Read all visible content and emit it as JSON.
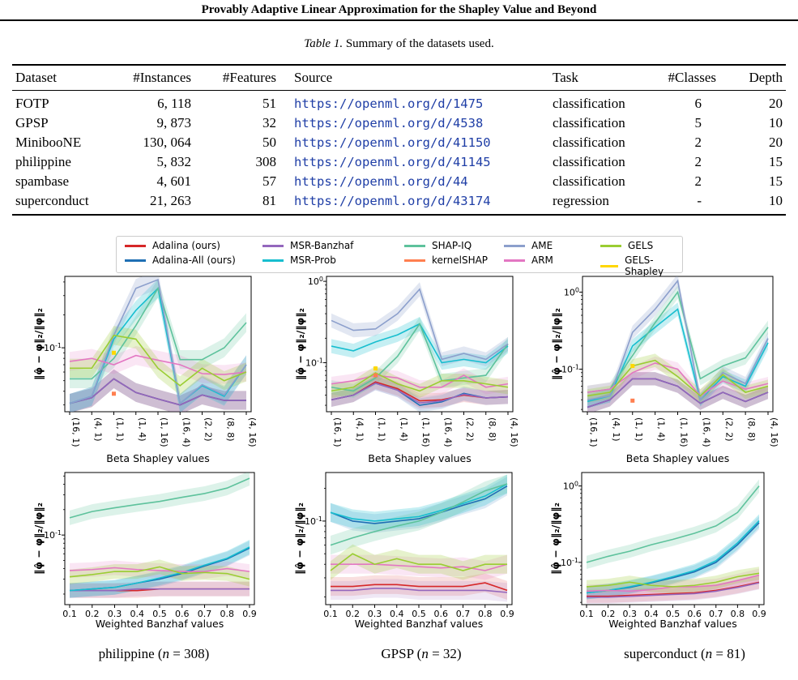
{
  "paper_header": "Provably Adaptive Linear Approximation for the Shapley Value and Beyond",
  "table": {
    "caption_prefix": "Table 1.",
    "caption_text": "Summary of the datasets used.",
    "columns": [
      "Dataset",
      "#Instances",
      "#Features",
      "Source",
      "Task",
      "#Classes",
      "Depth"
    ],
    "rows": [
      {
        "dataset": "FOTP",
        "instances": "6, 118",
        "features": "51",
        "source": "https://openml.org/d/1475",
        "task": "classification",
        "classes": "6",
        "depth": "20"
      },
      {
        "dataset": "GPSP",
        "instances": "9, 873",
        "features": "32",
        "source": "https://openml.org/d/4538",
        "task": "classification",
        "classes": "5",
        "depth": "10"
      },
      {
        "dataset": "MinibooNE",
        "instances": "130, 064",
        "features": "50",
        "source": "https://openml.org/d/41150",
        "task": "classification",
        "classes": "2",
        "depth": "20"
      },
      {
        "dataset": "philippine",
        "instances": "5, 832",
        "features": "308",
        "source": "https://openml.org/d/41145",
        "task": "classification",
        "classes": "2",
        "depth": "15"
      },
      {
        "dataset": "spambase",
        "instances": "4, 601",
        "features": "57",
        "source": "https://openml.org/d/44",
        "task": "classification",
        "classes": "2",
        "depth": "15"
      },
      {
        "dataset": "superconduct",
        "instances": "21, 263",
        "features": "81",
        "source": "https://openml.org/d/43174",
        "task": "regression",
        "classes": "-",
        "depth": "10"
      }
    ]
  },
  "legend": [
    {
      "name": "Adalina (ours)",
      "color": "#d62728"
    },
    {
      "name": "Adalina-All (ours)",
      "color": "#1f6fb4"
    },
    {
      "name": "MSR-Banzhaf",
      "color": "#9467bd"
    },
    {
      "name": "MSR-Prob",
      "color": "#17becf"
    },
    {
      "name": "SHAP-IQ",
      "color": "#5ec29c"
    },
    {
      "name": "kernelSHAP",
      "color": "#ff7f50"
    },
    {
      "name": "AME",
      "color": "#8c9fcc"
    },
    {
      "name": "ARM",
      "color": "#e377c2"
    },
    {
      "name": "GELS",
      "color": "#9acd32"
    },
    {
      "name": "GELS-Shapley",
      "color": "#ffd700"
    }
  ],
  "ylabel": "‖φ̂ − φ‖₂/‖φ‖₂",
  "beta_xlabel": "Beta Shapley values",
  "banzhaf_xlabel": "Weighted Banzhaf values",
  "beta_ticks": [
    "(16, 1)",
    "(4, 1)",
    "(1, 1)",
    "(1, 4)",
    "(1, 16)",
    "(16, 4)",
    "(2, 2)",
    "(8, 8)",
    "(4, 16)"
  ],
  "banzhaf_ticks": [
    "0.1",
    "0.2",
    "0.3",
    "0.4",
    "0.5",
    "0.6",
    "0.7",
    "0.8",
    "0.9"
  ],
  "subfigure_labels": [
    {
      "name": "philippine",
      "n": "308"
    },
    {
      "name": "GPSP",
      "n": "32"
    },
    {
      "name": "superconduct",
      "n": "81"
    }
  ],
  "chart_data": [
    {
      "panel": "philippine-beta",
      "type": "line",
      "log_y": true,
      "x": [
        "(16, 1)",
        "(4, 1)",
        "(1, 1)",
        "(1, 4)",
        "(1, 16)",
        "(16, 4)",
        "(2, 2)",
        "(8, 8)",
        "(4, 16)"
      ],
      "ylim": [
        0.026,
        0.45
      ],
      "ytick_labels": [
        {
          "value": 0.1,
          "label": "10^-1"
        }
      ],
      "xlabel": "Beta Shapley values",
      "series": [
        {
          "name": "Adalina (ours)",
          "values": [
            0.031,
            0.035,
            0.052,
            0.039,
            0.034,
            0.03,
            0.037,
            0.033,
            0.033
          ]
        },
        {
          "name": "Adalina-All (ours)",
          "values": [
            0.031,
            0.035,
            0.052,
            0.039,
            0.034,
            0.03,
            0.037,
            0.033,
            0.033
          ]
        },
        {
          "name": "MSR-Banzhaf",
          "values": [
            0.031,
            0.035,
            0.052,
            0.039,
            0.034,
            0.03,
            0.037,
            0.033,
            0.033
          ]
        },
        {
          "name": "MSR-Prob",
          "values": [
            0.031,
            0.036,
            0.12,
            0.22,
            0.35,
            0.031,
            0.045,
            0.036,
            0.07
          ]
        },
        {
          "name": "SHAP-IQ",
          "values": [
            0.052,
            0.052,
            0.08,
            0.16,
            0.35,
            0.078,
            0.078,
            0.1,
            0.17
          ]
        },
        {
          "name": "AME",
          "values": [
            0.031,
            0.036,
            0.13,
            0.35,
            0.42,
            0.031,
            0.046,
            0.037,
            0.07
          ]
        },
        {
          "name": "ARM",
          "values": [
            0.075,
            0.08,
            0.07,
            0.085,
            0.077,
            0.07,
            0.058,
            0.057,
            0.06
          ]
        },
        {
          "name": "GELS",
          "values": [
            0.065,
            0.065,
            0.13,
            0.12,
            0.065,
            0.045,
            0.065,
            0.05,
            0.06
          ]
        },
        {
          "name": "GELS-Shapley",
          "x": [
            "(1, 1)"
          ],
          "values": [
            0.09
          ]
        },
        {
          "name": "kernelSHAP",
          "x": [
            "(1, 1)"
          ],
          "values": [
            0.038
          ]
        }
      ]
    },
    {
      "panel": "GPSP-beta",
      "type": "line",
      "log_y": true,
      "x": [
        "(16, 1)",
        "(4, 1)",
        "(1, 1)",
        "(1, 4)",
        "(1, 16)",
        "(16, 4)",
        "(2, 2)",
        "(8, 8)",
        "(4, 16)"
      ],
      "ylim": [
        0.025,
        1.15
      ],
      "ytick_labels": [
        {
          "value": 1,
          "label": "10^0"
        },
        {
          "value": 0.1,
          "label": "10^-1"
        }
      ],
      "xlabel": "Beta Shapley values",
      "series": [
        {
          "name": "Adalina (ours)",
          "values": [
            0.035,
            0.04,
            0.058,
            0.048,
            0.034,
            0.035,
            0.04,
            0.037,
            0.038
          ]
        },
        {
          "name": "Adalina-All (ours)",
          "values": [
            0.035,
            0.04,
            0.056,
            0.046,
            0.03,
            0.033,
            0.042,
            0.037,
            0.038
          ]
        },
        {
          "name": "MSR-Banzhaf",
          "values": [
            0.035,
            0.04,
            0.056,
            0.046,
            0.032,
            0.034,
            0.041,
            0.037,
            0.038
          ]
        },
        {
          "name": "MSR-Prob",
          "values": [
            0.16,
            0.14,
            0.18,
            0.22,
            0.3,
            0.1,
            0.11,
            0.1,
            0.16
          ]
        },
        {
          "name": "SHAP-IQ",
          "values": [
            0.05,
            0.045,
            0.065,
            0.12,
            0.3,
            0.06,
            0.065,
            0.07,
            0.17
          ]
        },
        {
          "name": "AME",
          "values": [
            0.33,
            0.25,
            0.26,
            0.4,
            0.8,
            0.11,
            0.13,
            0.11,
            0.17
          ]
        },
        {
          "name": "ARM",
          "values": [
            0.055,
            0.06,
            0.07,
            0.065,
            0.05,
            0.05,
            0.07,
            0.05,
            0.055
          ]
        },
        {
          "name": "GELS",
          "values": [
            0.045,
            0.05,
            0.075,
            0.055,
            0.045,
            0.06,
            0.06,
            0.055,
            0.05
          ]
        },
        {
          "name": "GELS-Shapley",
          "x": [
            "(1, 1)"
          ],
          "values": [
            0.085
          ]
        },
        {
          "name": "kernelSHAP",
          "x": [
            "(1, 1)"
          ],
          "values": [
            0.07
          ]
        }
      ]
    },
    {
      "panel": "superconduct-beta",
      "type": "line",
      "log_y": true,
      "x": [
        "(16, 1)",
        "(4, 1)",
        "(1, 1)",
        "(1, 4)",
        "(1, 16)",
        "(16, 4)",
        "(2, 2)",
        "(8, 8)",
        "(4, 16)"
      ],
      "ylim": [
        0.028,
        1.6
      ],
      "ytick_labels": [
        {
          "value": 1,
          "label": "10^0"
        },
        {
          "value": 0.1,
          "label": "10^-1"
        }
      ],
      "xlabel": "Beta Shapley values",
      "series": [
        {
          "name": "Adalina (ours)",
          "values": [
            0.032,
            0.04,
            0.075,
            0.075,
            0.06,
            0.036,
            0.05,
            0.038,
            0.05
          ]
        },
        {
          "name": "Adalina-All (ours)",
          "values": [
            0.032,
            0.04,
            0.075,
            0.075,
            0.06,
            0.036,
            0.05,
            0.038,
            0.05
          ]
        },
        {
          "name": "MSR-Banzhaf",
          "values": [
            0.032,
            0.04,
            0.075,
            0.075,
            0.06,
            0.036,
            0.05,
            0.038,
            0.05
          ]
        },
        {
          "name": "MSR-Prob",
          "values": [
            0.038,
            0.045,
            0.2,
            0.35,
            0.6,
            0.04,
            0.08,
            0.06,
            0.22
          ]
        },
        {
          "name": "SHAP-IQ",
          "values": [
            0.05,
            0.055,
            0.15,
            0.4,
            1.0,
            0.075,
            0.11,
            0.14,
            0.35
          ]
        },
        {
          "name": "AME",
          "values": [
            0.04,
            0.045,
            0.3,
            0.6,
            1.4,
            0.04,
            0.09,
            0.065,
            0.25
          ]
        },
        {
          "name": "ARM",
          "values": [
            0.05,
            0.055,
            0.09,
            0.12,
            0.1,
            0.045,
            0.07,
            0.055,
            0.065
          ]
        },
        {
          "name": "GELS",
          "values": [
            0.045,
            0.05,
            0.11,
            0.13,
            0.08,
            0.045,
            0.085,
            0.05,
            0.06
          ]
        },
        {
          "name": "GELS-Shapley",
          "x": [
            "(1, 1)"
          ],
          "values": [
            0.11
          ]
        },
        {
          "name": "kernelSHAP",
          "x": [
            "(1, 1)"
          ],
          "values": [
            0.039
          ]
        }
      ]
    },
    {
      "panel": "philippine-banzhaf",
      "type": "line",
      "log_y": true,
      "x": [
        0.1,
        0.2,
        0.3,
        0.4,
        0.5,
        0.6,
        0.7,
        0.8,
        0.9
      ],
      "ylim": [
        0.015,
        0.55
      ],
      "ytick_labels": [
        {
          "value": 0.1,
          "label": "10^-1"
        }
      ],
      "xlabel": "Weighted Banzhaf values",
      "series": [
        {
          "name": "Adalina (ours)",
          "values": [
            0.022,
            0.022,
            0.022,
            0.022,
            0.023,
            0.023,
            0.023,
            0.023,
            0.023
          ]
        },
        {
          "name": "Adalina-All (ours)",
          "values": [
            0.022,
            0.023,
            0.024,
            0.027,
            0.03,
            0.035,
            0.043,
            0.052,
            0.07
          ]
        },
        {
          "name": "MSR-Banzhaf",
          "values": [
            0.022,
            0.022,
            0.022,
            0.023,
            0.023,
            0.023,
            0.023,
            0.023,
            0.023
          ]
        },
        {
          "name": "MSR-Prob",
          "values": [
            0.022,
            0.023,
            0.024,
            0.027,
            0.031,
            0.036,
            0.044,
            0.053,
            0.072
          ]
        },
        {
          "name": "SHAP-IQ",
          "values": [
            0.16,
            0.19,
            0.21,
            0.23,
            0.25,
            0.28,
            0.31,
            0.36,
            0.47
          ]
        },
        {
          "name": "ARM",
          "values": [
            0.038,
            0.039,
            0.041,
            0.039,
            0.038,
            0.037,
            0.037,
            0.04,
            0.037
          ]
        },
        {
          "name": "GELS",
          "values": [
            0.032,
            0.034,
            0.037,
            0.037,
            0.042,
            0.035,
            0.036,
            0.035,
            0.03
          ]
        }
      ]
    },
    {
      "panel": "GPSP-banzhaf",
      "type": "line",
      "log_y": true,
      "x": [
        0.1,
        0.2,
        0.3,
        0.4,
        0.5,
        0.6,
        0.7,
        0.8,
        0.9
      ],
      "ylim": [
        0.017,
        0.28
      ],
      "ytick_labels": [
        {
          "value": 0.1,
          "label": "10^-1"
        }
      ],
      "xlabel": "Weighted Banzhaf values",
      "series": [
        {
          "name": "Adalina (ours)",
          "values": [
            0.025,
            0.025,
            0.026,
            0.026,
            0.025,
            0.025,
            0.025,
            0.027,
            0.023
          ]
        },
        {
          "name": "Adalina-All (ours)",
          "values": [
            0.12,
            0.1,
            0.095,
            0.1,
            0.105,
            0.12,
            0.14,
            0.16,
            0.21
          ]
        },
        {
          "name": "MSR-Banzhaf",
          "values": [
            0.023,
            0.023,
            0.024,
            0.024,
            0.023,
            0.023,
            0.023,
            0.023,
            0.022
          ]
        },
        {
          "name": "MSR-Prob",
          "values": [
            0.12,
            0.105,
            0.1,
            0.105,
            0.11,
            0.125,
            0.145,
            0.17,
            0.22
          ]
        },
        {
          "name": "SHAP-IQ",
          "values": [
            0.06,
            0.07,
            0.08,
            0.09,
            0.1,
            0.12,
            0.15,
            0.19,
            0.22
          ]
        },
        {
          "name": "ARM",
          "values": [
            0.04,
            0.04,
            0.04,
            0.039,
            0.038,
            0.037,
            0.038,
            0.035,
            0.04
          ]
        },
        {
          "name": "GELS",
          "values": [
            0.035,
            0.05,
            0.04,
            0.045,
            0.04,
            0.04,
            0.035,
            0.04,
            0.04
          ]
        }
      ]
    },
    {
      "panel": "superconduct-banzhaf",
      "type": "line",
      "log_y": true,
      "x": [
        0.1,
        0.2,
        0.3,
        0.4,
        0.5,
        0.6,
        0.7,
        0.8,
        0.9
      ],
      "ylim": [
        0.028,
        1.5
      ],
      "ytick_labels": [
        {
          "value": 1,
          "label": "10^0"
        },
        {
          "value": 0.1,
          "label": "10^-1"
        }
      ],
      "xlabel": "Weighted Banzhaf values",
      "series": [
        {
          "name": "Adalina (ours)",
          "values": [
            0.036,
            0.036,
            0.037,
            0.038,
            0.039,
            0.04,
            0.043,
            0.048,
            0.055
          ]
        },
        {
          "name": "Adalina-All (ours)",
          "values": [
            0.04,
            0.043,
            0.047,
            0.054,
            0.063,
            0.075,
            0.1,
            0.17,
            0.33
          ]
        },
        {
          "name": "MSR-Banzhaf",
          "values": [
            0.035,
            0.035,
            0.036,
            0.037,
            0.038,
            0.039,
            0.042,
            0.047,
            0.054
          ]
        },
        {
          "name": "MSR-Prob",
          "values": [
            0.04,
            0.043,
            0.048,
            0.055,
            0.065,
            0.078,
            0.105,
            0.18,
            0.35
          ]
        },
        {
          "name": "SHAP-IQ",
          "values": [
            0.1,
            0.12,
            0.14,
            0.17,
            0.2,
            0.24,
            0.3,
            0.45,
            1.0
          ]
        },
        {
          "name": "ARM",
          "values": [
            0.042,
            0.043,
            0.042,
            0.044,
            0.048,
            0.048,
            0.05,
            0.058,
            0.068
          ]
        },
        {
          "name": "GELS",
          "values": [
            0.048,
            0.05,
            0.055,
            0.05,
            0.048,
            0.05,
            0.055,
            0.065,
            0.072
          ]
        }
      ]
    }
  ]
}
